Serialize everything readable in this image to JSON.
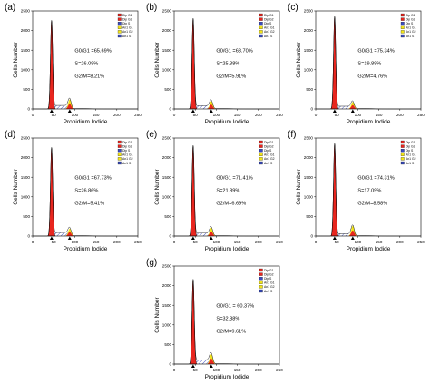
{
  "chart_data": [
    {
      "type": "area",
      "panel_label": "(a)",
      "xlabel": "Propidium Iodide",
      "ylabel": "Cells Number",
      "xlim": [
        0,
        250
      ],
      "ylim": [
        0,
        2500
      ],
      "x_ticks": [
        "0",
        "50",
        "100",
        "150",
        "200",
        "250"
      ],
      "y_ticks": [
        "0",
        "500",
        "1000",
        "1500",
        "2000",
        "2500"
      ],
      "legend": [
        "Dip G1",
        "Dip G2",
        "Dip S",
        "An1 G1",
        "An1 G2",
        "An1 S"
      ],
      "stats": [
        "G0/G1 =65.69%",
        "S=26.09%",
        "G2/M=8.21%"
      ],
      "g1_peak": {
        "x": 45,
        "y": 2250
      },
      "g2_peak": {
        "x": 88,
        "y": 240
      },
      "s_level": 90
    },
    {
      "type": "area",
      "panel_label": "(b)",
      "xlabel": "Propidium Iodide",
      "ylabel": "Cells Number",
      "xlim": [
        0,
        250
      ],
      "ylim": [
        0,
        2500
      ],
      "x_ticks": [
        "0",
        "50",
        "100",
        "150",
        "200",
        "250"
      ],
      "y_ticks": [
        "0",
        "500",
        "1000",
        "1500",
        "2000",
        "2500"
      ],
      "legend": [
        "Dip G1",
        "Dip G2",
        "Dip S",
        "An1 G1",
        "An1 G2",
        "An1 S"
      ],
      "stats": [
        "G0/G1 =68.70%",
        "S=25.38%",
        "G2/M=5.91%"
      ],
      "g1_peak": {
        "x": 45,
        "y": 2300
      },
      "g2_peak": {
        "x": 88,
        "y": 200
      },
      "s_level": 85
    },
    {
      "type": "area",
      "panel_label": "(c)",
      "xlabel": "Propidium Iodide",
      "ylabel": "Cells Number",
      "xlim": [
        0,
        250
      ],
      "ylim": [
        0,
        2500
      ],
      "x_ticks": [
        "0",
        "50",
        "100",
        "150",
        "200",
        "250"
      ],
      "y_ticks": [
        "0",
        "500",
        "1000",
        "1500",
        "2000",
        "2500"
      ],
      "legend": [
        "Dip G1",
        "Dip G2",
        "Dip S",
        "An1 G1",
        "An1 G2",
        "An1 S"
      ],
      "stats": [
        "G0/G1 =75.34%",
        "S=19.89%",
        "G2/M=4.76%"
      ],
      "g1_peak": {
        "x": 45,
        "y": 2350
      },
      "g2_peak": {
        "x": 88,
        "y": 180
      },
      "s_level": 70
    },
    {
      "type": "area",
      "panel_label": "(d)",
      "xlabel": "Propidium Iodide",
      "ylabel": "Cells Number",
      "xlim": [
        0,
        250
      ],
      "ylim": [
        0,
        2500
      ],
      "x_ticks": [
        "0",
        "50",
        "100",
        "150",
        "200",
        "250"
      ],
      "y_ticks": [
        "0",
        "500",
        "1000",
        "1500",
        "2000",
        "2500"
      ],
      "legend": [
        "Dip G1",
        "Dip G2",
        "Dip S",
        "An1 G1",
        "An1 G2",
        "An1 S"
      ],
      "stats": [
        "G0/G1 =67.73%",
        "S=26.86%",
        "G2/M=5.41%"
      ],
      "g1_peak": {
        "x": 45,
        "y": 2250
      },
      "g2_peak": {
        "x": 88,
        "y": 190
      },
      "s_level": 90
    },
    {
      "type": "area",
      "panel_label": "(e)",
      "xlabel": "Propidium Iodide",
      "ylabel": "Cells Number",
      "xlim": [
        0,
        250
      ],
      "ylim": [
        0,
        2500
      ],
      "x_ticks": [
        "0",
        "50",
        "100",
        "150",
        "200",
        "250"
      ],
      "y_ticks": [
        "0",
        "500",
        "1000",
        "1500",
        "2000",
        "2500"
      ],
      "legend": [
        "Dip G1",
        "Dip G2",
        "Dip S",
        "An1 G1",
        "An1 G2",
        "An1 S"
      ],
      "stats": [
        "G0/G1 =71.41%",
        "S=21.89%",
        "G2/M=6.69%"
      ],
      "g1_peak": {
        "x": 45,
        "y": 2300
      },
      "g2_peak": {
        "x": 88,
        "y": 210
      },
      "s_level": 75
    },
    {
      "type": "area",
      "panel_label": "(f)",
      "xlabel": "Propidium Iodide",
      "ylabel": "Cells Number",
      "xlim": [
        0,
        250
      ],
      "ylim": [
        0,
        2500
      ],
      "x_ticks": [
        "0",
        "50",
        "100",
        "150",
        "200",
        "250"
      ],
      "y_ticks": [
        "0",
        "500",
        "1000",
        "1500",
        "2000",
        "2500"
      ],
      "legend": [
        "Dip G1",
        "Dip G2",
        "Dip S",
        "An1 G1",
        "An1 G2",
        "An1 S"
      ],
      "stats": [
        "G0/G1 =74.31%",
        "S=17.09%",
        "G2/M=8.58%"
      ],
      "g1_peak": {
        "x": 45,
        "y": 2350
      },
      "g2_peak": {
        "x": 88,
        "y": 260
      },
      "s_level": 60
    },
    {
      "type": "area",
      "panel_label": "(g)",
      "xlabel": "Propidium Iodide",
      "ylabel": "Cells Number",
      "xlim": [
        0,
        250
      ],
      "ylim": [
        0,
        2500
      ],
      "x_ticks": [
        "0",
        "50",
        "100",
        "150",
        "200",
        "250"
      ],
      "y_ticks": [
        "0",
        "500",
        "1000",
        "1500",
        "2000",
        "2500"
      ],
      "legend": [
        "Dip G1",
        "Dip G2",
        "Dip S",
        "An1 G1",
        "An1 G2",
        "An1 S"
      ],
      "stats": [
        "G0/G1 = 60.37%",
        "S=32.88%",
        "G2/M=9.61%"
      ],
      "g1_peak": {
        "x": 45,
        "y": 2150
      },
      "g2_peak": {
        "x": 88,
        "y": 250
      },
      "s_level": 110
    }
  ],
  "colors": {
    "g1": "#e8261f",
    "g2": "#e8261f",
    "s_hatch": "#3a4cc0",
    "an_g1": "#f2e41a",
    "outline": "#000000",
    "legend_swatches": [
      "#e8261f",
      "#e8261f",
      "#3a4cc0",
      "#f2e41a",
      "#f2e41a",
      "#3a4cc0"
    ]
  }
}
